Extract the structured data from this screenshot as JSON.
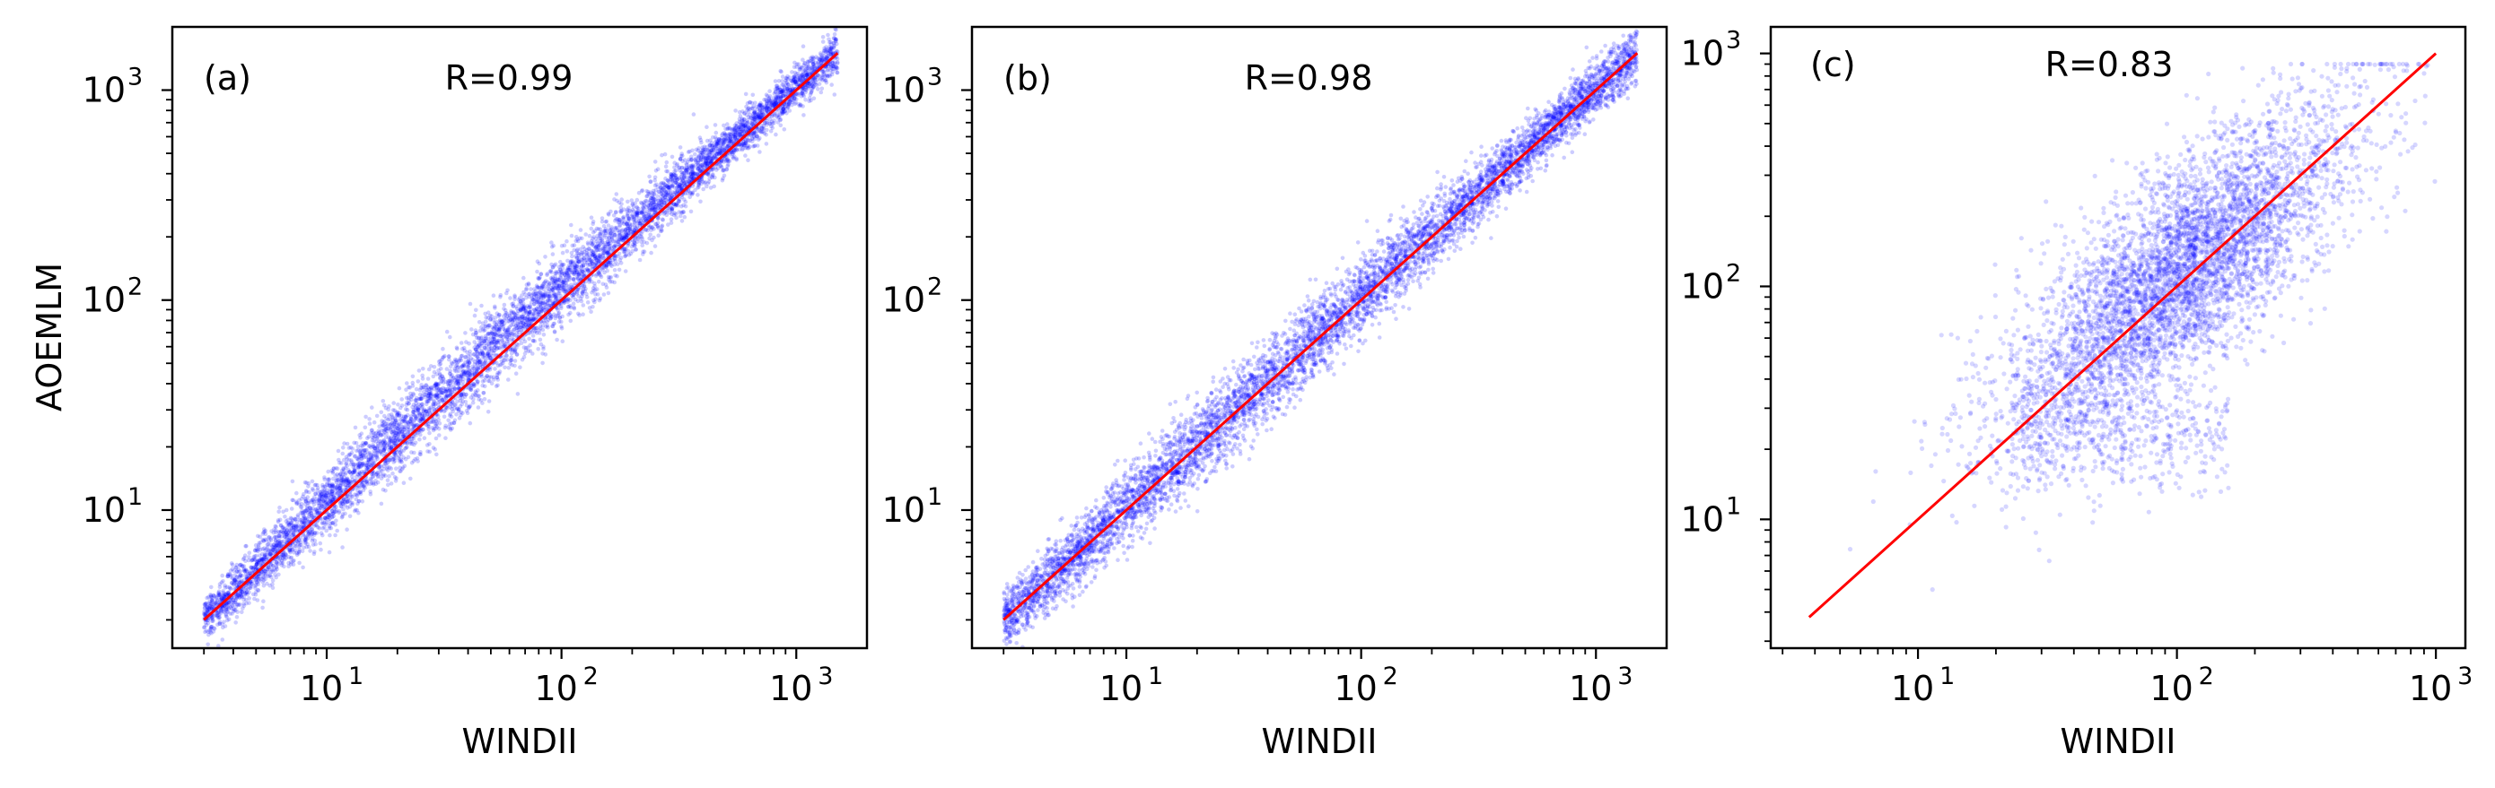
{
  "chart_data": [
    {
      "type": "scatter",
      "panel_label": "(a)",
      "annotation": "R=0.99",
      "xlabel": "WINDII",
      "ylabel": "AOEMLM",
      "xscale": "log",
      "yscale": "log",
      "xlim": [
        2.2,
        2000
      ],
      "ylim": [
        2.2,
        2000
      ],
      "xticks": [
        10,
        100,
        1000
      ],
      "yticks": [
        10,
        100,
        1000
      ],
      "xtick_labels": [
        "10",
        "1",
        "10",
        "2",
        "10",
        "3"
      ],
      "ytick_labels": [
        "10",
        "1",
        "10",
        "2",
        "10",
        "3"
      ],
      "point_color": "#0000ff",
      "line_color": "#ff0000",
      "series": [
        {
          "kind": "identity_line",
          "x": [
            3,
            1500
          ],
          "y": [
            3,
            1500
          ]
        },
        {
          "kind": "scatter_cloud",
          "x_range": [
            3,
            1500
          ],
          "y_range": [
            3,
            1500
          ],
          "R": 0.99
        }
      ]
    },
    {
      "type": "scatter",
      "panel_label": "(b)",
      "annotation": "R=0.98",
      "xlabel": "WINDII",
      "ylabel": "",
      "xscale": "log",
      "yscale": "log",
      "xlim": [
        2.2,
        2000
      ],
      "ylim": [
        2.2,
        2000
      ],
      "xticks": [
        10,
        100,
        1000
      ],
      "yticks": [
        10,
        100,
        1000
      ],
      "xtick_labels": [
        "10",
        "1",
        "10",
        "2",
        "10",
        "3"
      ],
      "ytick_labels": [
        "10",
        "1",
        "10",
        "2",
        "10",
        "3"
      ],
      "point_color": "#0000ff",
      "line_color": "#ff0000",
      "series": [
        {
          "kind": "identity_line",
          "x": [
            3,
            1500
          ],
          "y": [
            3,
            1500
          ]
        },
        {
          "kind": "scatter_cloud",
          "x_range": [
            3,
            1500
          ],
          "y_range": [
            3,
            1500
          ],
          "R": 0.98
        }
      ]
    },
    {
      "type": "scatter",
      "panel_label": "(c)",
      "annotation": "R=0.83",
      "xlabel": "WINDII",
      "ylabel": "",
      "xscale": "log",
      "yscale": "log",
      "xlim": [
        2.7,
        1300
      ],
      "ylim": [
        2.8,
        1300
      ],
      "xticks": [
        10,
        100,
        1000
      ],
      "yticks": [
        10,
        100,
        1000
      ],
      "xtick_labels": [
        "10",
        "1",
        "10",
        "2",
        "10",
        "3"
      ],
      "ytick_labels": [
        "10",
        "1",
        "10",
        "2",
        "10",
        "3"
      ],
      "point_color": "#0000ff",
      "line_color": "#ff0000",
      "series": [
        {
          "kind": "identity_line",
          "x": [
            3.8,
            1000
          ],
          "y": [
            3.8,
            1000
          ]
        },
        {
          "kind": "scatter_cloud",
          "x_range": [
            4,
            1000
          ],
          "y_range": [
            5,
            900
          ],
          "R": 0.83
        }
      ]
    }
  ]
}
